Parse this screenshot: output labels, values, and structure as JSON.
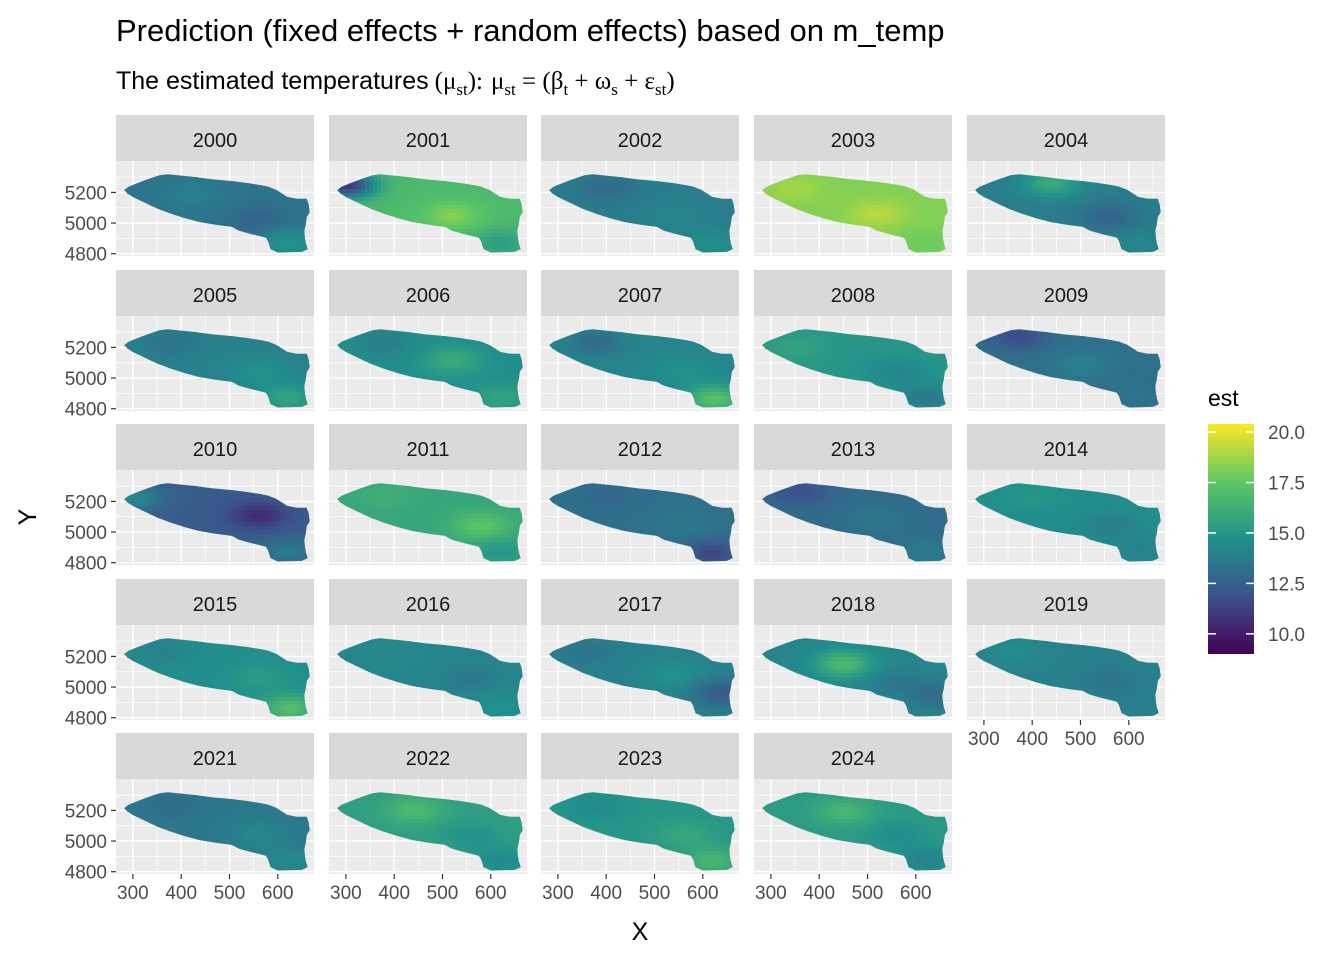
{
  "chart_data": {
    "type": "heatmap",
    "title": "Prediction (fixed effects + random effects) based on m_temp",
    "subtitle": {
      "text": "The estimated temperatures",
      "lhs_symbol": "μ",
      "lhs_sub": "st",
      "rhs_beta": "β",
      "rhs_beta_sub": "t",
      "rhs_omega": "ω",
      "rhs_omega_sub": "s",
      "rhs_eps": "ε",
      "rhs_eps_sub": "st"
    },
    "xlabel": "X",
    "ylabel": "Y",
    "x_ticks": [
      "300",
      "400",
      "500",
      "600"
    ],
    "x_tick_values": [
      300,
      400,
      500,
      600
    ],
    "y_ticks": [
      "5200",
      "5000",
      "4800"
    ],
    "y_tick_values": [
      5200,
      5000,
      4800
    ],
    "xlim": [
      265,
      675
    ],
    "ylim": [
      4785,
      5405
    ],
    "legend": {
      "title": "est",
      "labels": [
        "20.0",
        "17.5",
        "15.0",
        "12.5",
        "10.0"
      ],
      "values": [
        20.0,
        17.5,
        15.0,
        12.5,
        10.0
      ],
      "range": [
        9.0,
        20.4
      ],
      "position": "right",
      "palette": [
        "#440154",
        "#3b528b",
        "#21908c",
        "#5dc863",
        "#fde725"
      ]
    },
    "panels": [
      {
        "label": "2000",
        "mean": 13.4,
        "anomaly": [
          [
            420,
            5180,
            0.6
          ],
          [
            560,
            5020,
            -0.8
          ],
          [
            620,
            4870,
            1.5
          ]
        ]
      },
      {
        "label": "2001",
        "mean": 16.8,
        "anomaly": [
          [
            300,
            5250,
            -6.0
          ],
          [
            520,
            5050,
            1.5
          ],
          [
            620,
            4870,
            -1.5
          ]
        ]
      },
      {
        "label": "2002",
        "mean": 13.8,
        "anomaly": [
          [
            400,
            5230,
            -0.8
          ],
          [
            540,
            5040,
            0.4
          ],
          [
            620,
            4870,
            0.8
          ]
        ]
      },
      {
        "label": "2003",
        "mean": 18.2,
        "anomaly": [
          [
            350,
            5220,
            0.6
          ],
          [
            520,
            5060,
            1.0
          ],
          [
            620,
            4870,
            -0.4
          ]
        ]
      },
      {
        "label": "2004",
        "mean": 13.8,
        "anomaly": [
          [
            440,
            5260,
            2.2
          ],
          [
            560,
            5040,
            -1.2
          ],
          [
            620,
            4870,
            0.4
          ]
        ]
      },
      {
        "label": "2005",
        "mean": 14.0,
        "anomaly": [
          [
            380,
            5230,
            -0.6
          ],
          [
            560,
            5040,
            0.8
          ],
          [
            620,
            4870,
            1.6
          ]
        ]
      },
      {
        "label": "2006",
        "mean": 14.6,
        "anomaly": [
          [
            380,
            5230,
            -0.8
          ],
          [
            520,
            5110,
            1.4
          ],
          [
            620,
            4870,
            1.0
          ]
        ]
      },
      {
        "label": "2007",
        "mean": 14.2,
        "anomaly": [
          [
            380,
            5230,
            -1.2
          ],
          [
            560,
            5040,
            0.6
          ],
          [
            625,
            4860,
            3.0
          ]
        ]
      },
      {
        "label": "2008",
        "mean": 15.0,
        "anomaly": [
          [
            350,
            5200,
            0.6
          ],
          [
            560,
            5040,
            -0.8
          ],
          [
            620,
            4870,
            -1.4
          ]
        ]
      },
      {
        "label": "2009",
        "mean": 13.2,
        "anomaly": [
          [
            370,
            5270,
            -1.6
          ],
          [
            500,
            5080,
            0.8
          ],
          [
            620,
            4870,
            0.2
          ]
        ]
      },
      {
        "label": "2010",
        "mean": 12.3,
        "anomaly": [
          [
            300,
            5220,
            2.0
          ],
          [
            560,
            5110,
            -1.8
          ],
          [
            620,
            4870,
            1.4
          ]
        ]
      },
      {
        "label": "2011",
        "mean": 15.8,
        "anomaly": [
          [
            380,
            5230,
            0.4
          ],
          [
            580,
            5040,
            1.6
          ],
          [
            620,
            4870,
            -0.8
          ]
        ]
      },
      {
        "label": "2012",
        "mean": 13.2,
        "anomaly": [
          [
            400,
            5230,
            -0.4
          ],
          [
            560,
            5040,
            0.4
          ],
          [
            620,
            4860,
            -1.8
          ]
        ]
      },
      {
        "label": "2013",
        "mean": 13.0,
        "anomaly": [
          [
            360,
            5260,
            -1.2
          ],
          [
            520,
            5080,
            0.6
          ],
          [
            620,
            4870,
            0.8
          ]
        ]
      },
      {
        "label": "2014",
        "mean": 14.6,
        "anomaly": [
          [
            400,
            5230,
            0.4
          ],
          [
            560,
            5040,
            -0.8
          ],
          [
            620,
            4870,
            -0.6
          ]
        ]
      },
      {
        "label": "2015",
        "mean": 14.6,
        "anomaly": [
          [
            360,
            5230,
            -0.6
          ],
          [
            560,
            5060,
            0.6
          ],
          [
            625,
            4860,
            2.4
          ]
        ]
      },
      {
        "label": "2016",
        "mean": 14.2,
        "anomaly": [
          [
            380,
            5230,
            0.2
          ],
          [
            560,
            5060,
            -0.6
          ],
          [
            620,
            4870,
            0.6
          ]
        ]
      },
      {
        "label": "2017",
        "mean": 14.0,
        "anomaly": [
          [
            360,
            5230,
            -0.6
          ],
          [
            540,
            5080,
            0.8
          ],
          [
            640,
            4960,
            -1.8
          ]
        ]
      },
      {
        "label": "2018",
        "mean": 14.2,
        "anomaly": [
          [
            450,
            5150,
            2.6
          ],
          [
            560,
            5040,
            -0.6
          ],
          [
            640,
            4950,
            -1.2
          ]
        ]
      },
      {
        "label": "2019",
        "mean": 14.0,
        "anomaly": [
          [
            360,
            5230,
            0.6
          ],
          [
            560,
            5040,
            -0.6
          ],
          [
            620,
            4870,
            -0.2
          ]
        ]
      },
      {
        "label": "2021",
        "mean": 13.6,
        "anomaly": [
          [
            380,
            5230,
            -0.6
          ],
          [
            560,
            5040,
            0.6
          ],
          [
            620,
            4870,
            0.8
          ]
        ]
      },
      {
        "label": "2022",
        "mean": 15.4,
        "anomaly": [
          [
            440,
            5200,
            1.4
          ],
          [
            560,
            5040,
            -0.6
          ],
          [
            620,
            4870,
            -1.0
          ]
        ]
      },
      {
        "label": "2023",
        "mean": 15.0,
        "anomaly": [
          [
            380,
            5230,
            -0.6
          ],
          [
            560,
            5040,
            0.8
          ],
          [
            620,
            4870,
            1.6
          ]
        ]
      },
      {
        "label": "2024",
        "mean": 15.2,
        "anomaly": [
          [
            450,
            5190,
            1.4
          ],
          [
            560,
            5040,
            -0.6
          ],
          [
            620,
            4870,
            -1.2
          ]
        ]
      }
    ]
  }
}
